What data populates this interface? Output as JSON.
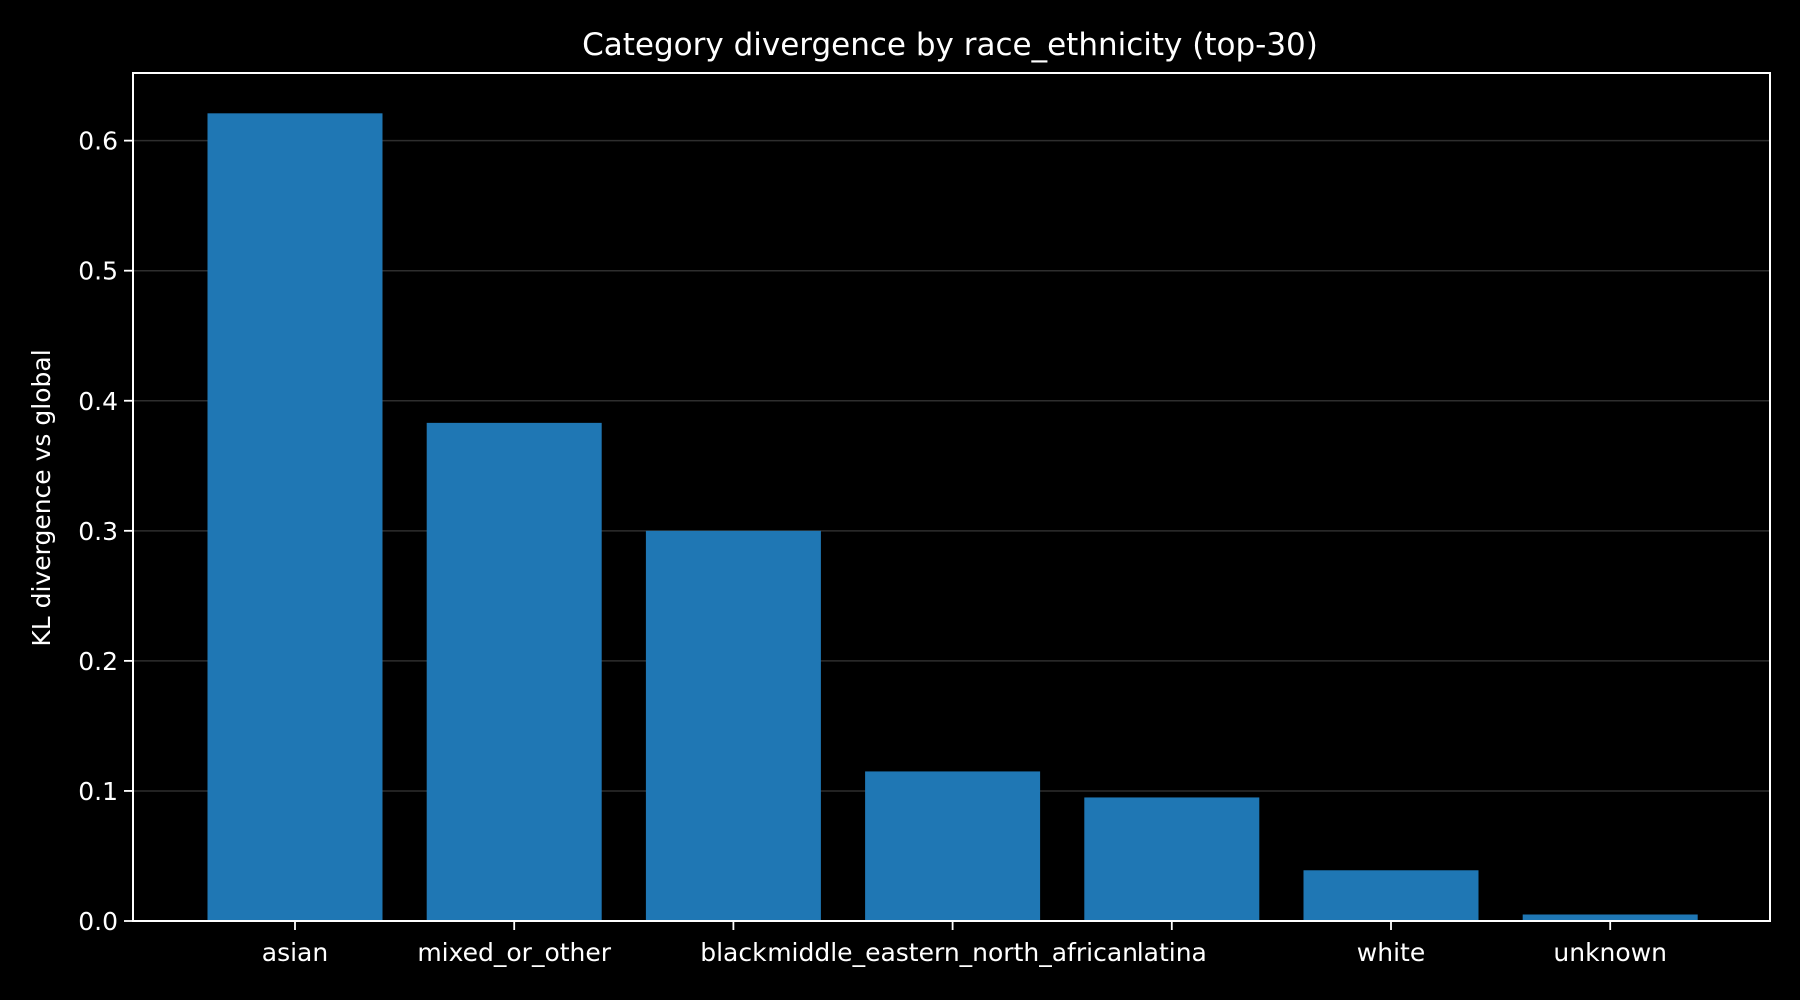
{
  "chart_data": {
    "type": "bar",
    "title": "Category divergence by race_ethnicity (top-30)",
    "xlabel": "",
    "ylabel": "KL divergence vs global",
    "categories": [
      "asian",
      "mixed_or_other",
      "black",
      "middle_eastern_north_african",
      "latina",
      "white",
      "unknown"
    ],
    "values": [
      0.621,
      0.383,
      0.3,
      0.115,
      0.095,
      0.039,
      0.005
    ],
    "yticks": [
      "0.0",
      "0.1",
      "0.2",
      "0.3",
      "0.4",
      "0.5",
      "0.6"
    ],
    "ylim": [
      0,
      0.652
    ],
    "grid": "horizontal",
    "colors": {
      "background": "#000000",
      "bar": "#1f77b4",
      "text": "#ffffff"
    }
  }
}
